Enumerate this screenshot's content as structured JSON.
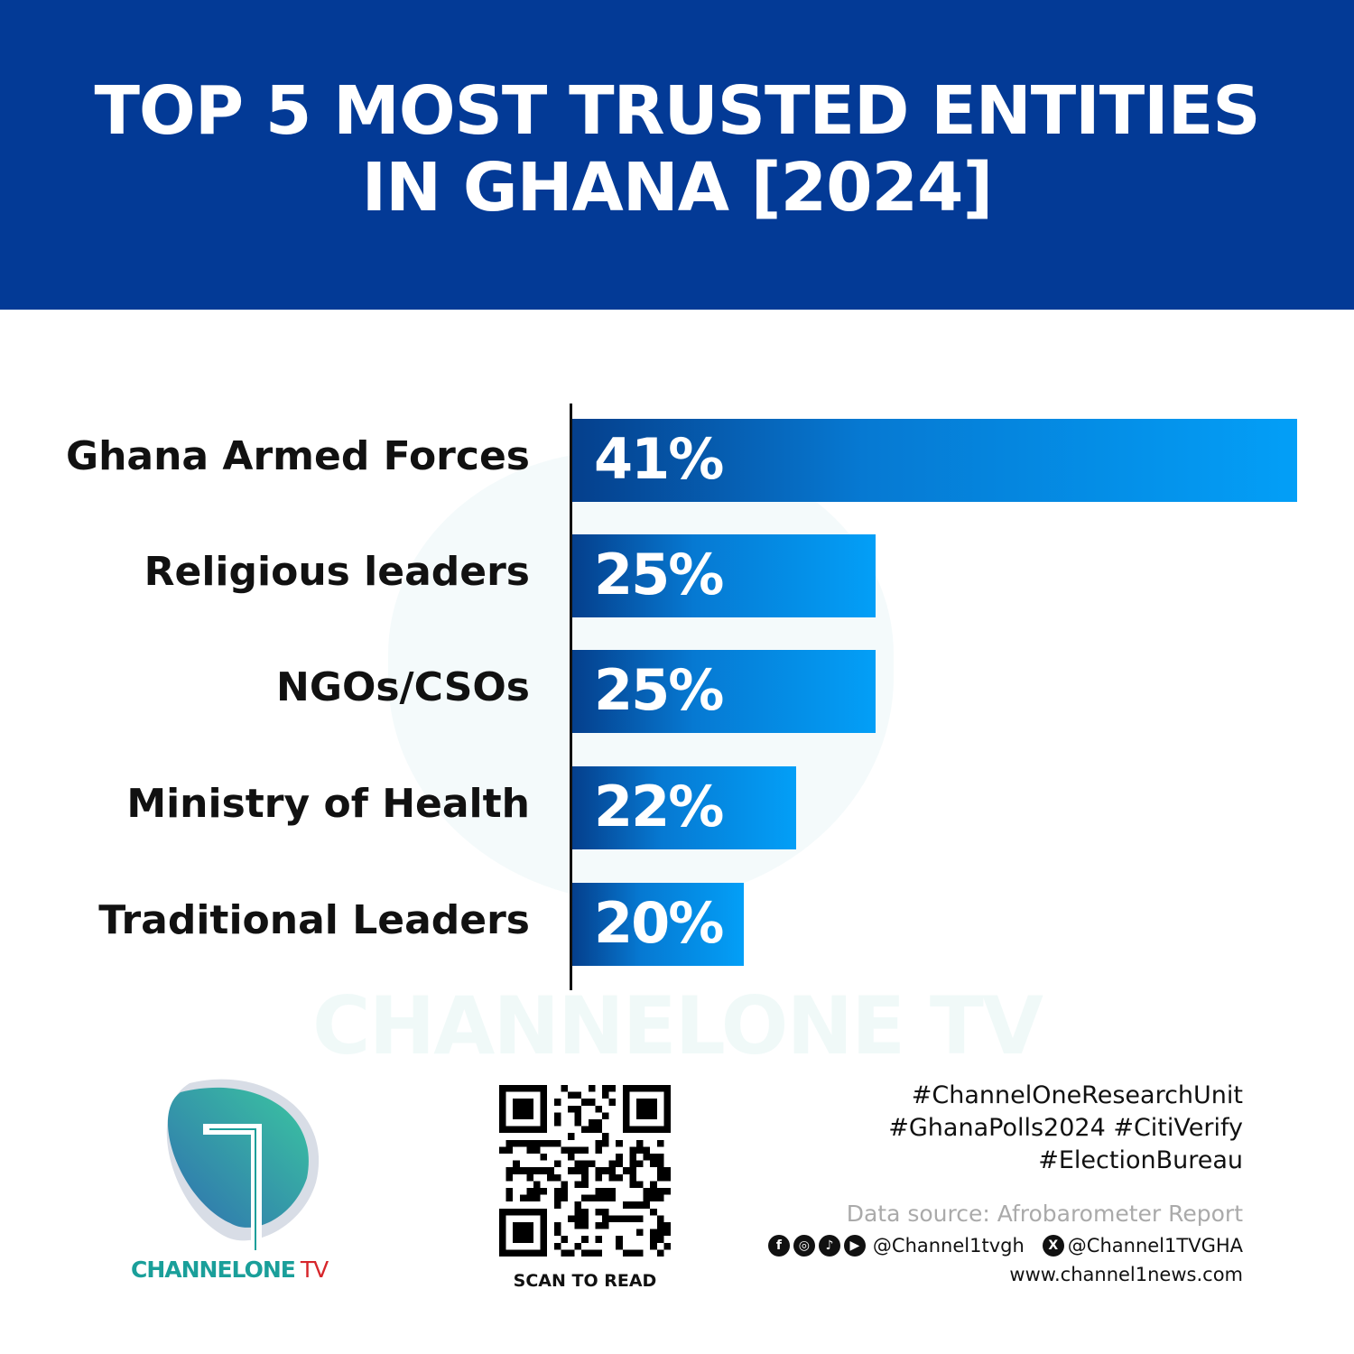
{
  "header": {
    "title_line1": "TOP 5 MOST TRUSTED ENTITIES",
    "title_line2": "IN GHANA [2024]",
    "background": "#033a96"
  },
  "chart_data": {
    "type": "bar",
    "orientation": "horizontal",
    "title": "TOP 5 MOST TRUSTED ENTITIES IN GHANA [2024]",
    "categories": [
      "Ghana Armed Forces",
      "Religious leaders",
      "NGOs/CSOs",
      "Ministry of Health",
      "Traditional Leaders"
    ],
    "values": [
      41,
      25,
      25,
      22,
      20
    ],
    "value_labels": [
      "41%",
      "25%",
      "25%",
      "22%",
      "20%"
    ],
    "unit": "%",
    "xlim": [
      13.5,
      41
    ],
    "grid": false,
    "bar_colors": [
      "#053f8c",
      "#039ff7"
    ]
  },
  "watermark": "CHANNELONE TV",
  "logo": {
    "text_main": "CHANNELONE",
    "text_tv": "TV",
    "teal": "#1a9f9a",
    "red": "#d7262b"
  },
  "qr": {
    "caption": "SCAN TO READ"
  },
  "footer": {
    "hashtags": [
      "#ChannelOneResearchUnit",
      "#GhanaPolls2024 #CitiVerify",
      "#ElectionBureau"
    ],
    "source": "Data source: Afrobarometer Report",
    "social_icons": [
      "facebook-icon",
      "instagram-icon",
      "tiktok-icon",
      "youtube-icon"
    ],
    "handle_main": "@Channel1tvgh",
    "x_icon": "x-icon",
    "handle_x": "@Channel1TVGHA",
    "website": "www.channel1news.com"
  }
}
